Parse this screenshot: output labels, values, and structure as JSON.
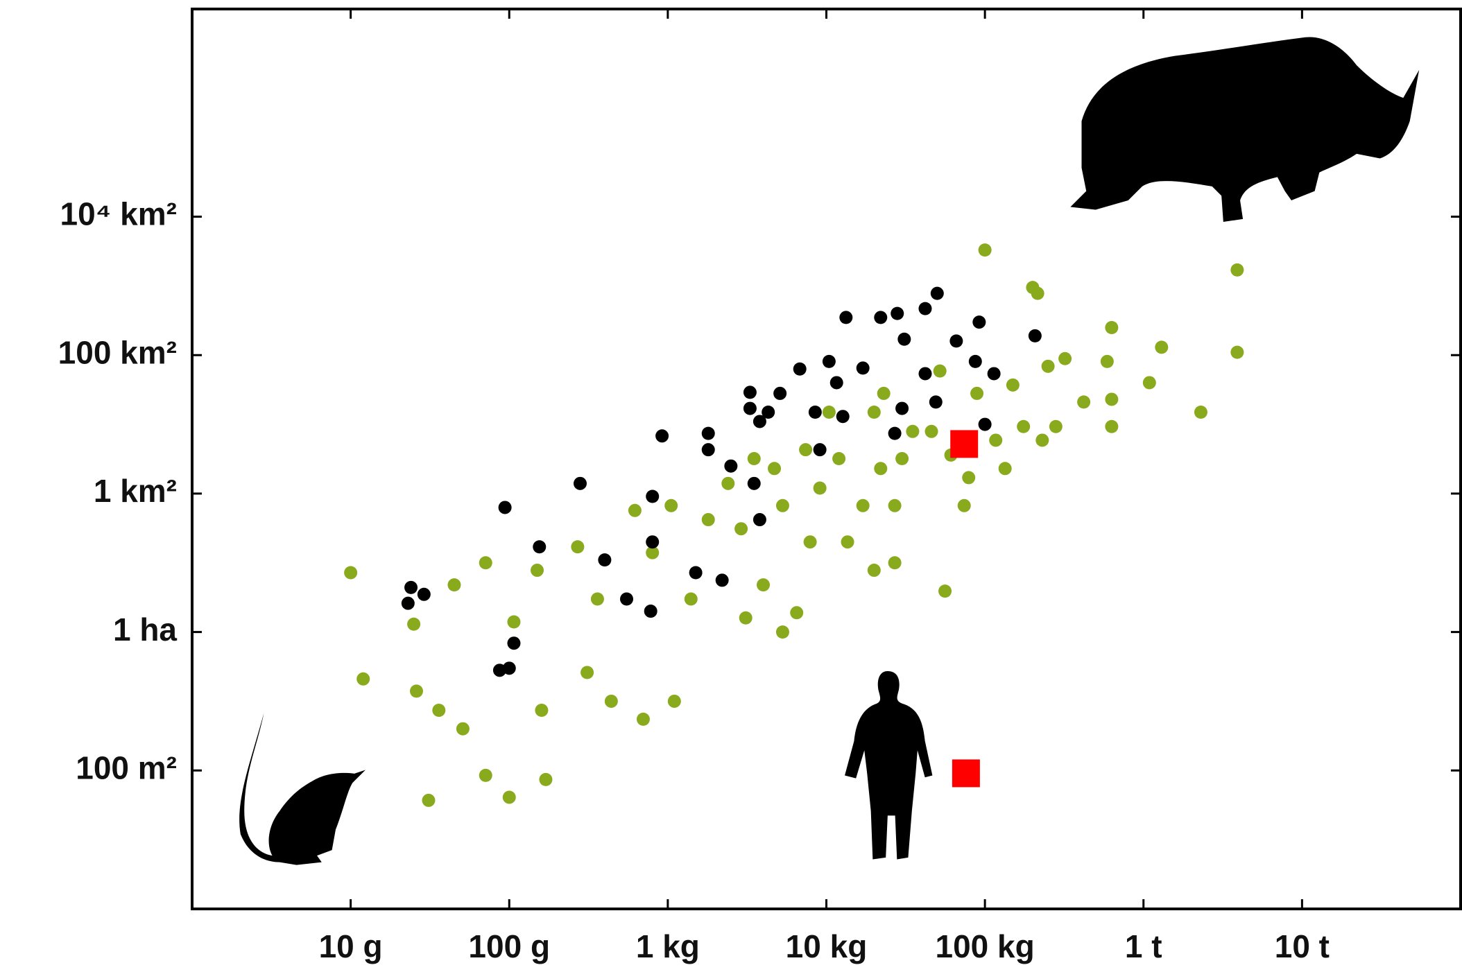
{
  "chart_data": {
    "type": "scatter",
    "xscale": "log",
    "yscale": "log",
    "xlim": [
      0.001,
      100000
    ],
    "ylim": [
      1,
      10000000000000
    ],
    "xticks": [
      {
        "value": 0.01,
        "label": "10 g"
      },
      {
        "value": 0.1,
        "label": "100 g"
      },
      {
        "value": 1,
        "label": "1 kg"
      },
      {
        "value": 10,
        "label": "10 kg"
      },
      {
        "value": 100,
        "label": "100 kg"
      },
      {
        "value": 1000,
        "label": "1 t"
      },
      {
        "value": 10000,
        "label": "10 t"
      }
    ],
    "yticks": [
      {
        "value": 100,
        "label": "100 m²"
      },
      {
        "value": 10000,
        "label": "1 ha"
      },
      {
        "value": 1000000,
        "label": "1 km²"
      },
      {
        "value": 100000000,
        "label": "100 km²"
      },
      {
        "value": 10000000000,
        "label": "10⁴ km²"
      }
    ],
    "series": [
      {
        "color": "#8aaa1e",
        "marker": "circle",
        "x": [
          0.01,
          0.012,
          0.031,
          0.1,
          0.071,
          0.045,
          0.025,
          0.026,
          0.036,
          0.051,
          0.071,
          0.107,
          0.15,
          0.16,
          0.17,
          0.27,
          0.36,
          0.31,
          0.44,
          0.62,
          0.7,
          0.8,
          1.1,
          1.05,
          1.4,
          1.8,
          2.4,
          2.9,
          3.1,
          3.5,
          4.0,
          4.7,
          5.3,
          6.5,
          5.3,
          7.4,
          7.9,
          9.1,
          10.4,
          12,
          13.6,
          17,
          20,
          22,
          20,
          23,
          27,
          27,
          30,
          35,
          46,
          52,
          56,
          74,
          89,
          100,
          117,
          134,
          150,
          175,
          200,
          215,
          230,
          250,
          280,
          320,
          420,
          590,
          630,
          630,
          630,
          1090,
          1300,
          2300,
          3900,
          3900,
          61,
          79
        ],
        "values": [
          72000,
          2100,
          37,
          41,
          100000,
          48000,
          13000,
          1400,
          740,
          400,
          85,
          14000,
          78000,
          740,
          74,
          170000,
          30000,
          2600,
          1000,
          570000,
          550,
          140000,
          1000,
          670000,
          30000,
          420000,
          1400000,
          310000,
          16000,
          3200000,
          48000,
          2300000,
          670000,
          19000,
          10000,
          4300000,
          200000,
          1200000,
          15000000,
          3200000,
          200000,
          670000,
          15000000,
          2300000,
          78000,
          28000000,
          670000,
          100000,
          3200000,
          7900000,
          7900000,
          59000000,
          39000,
          670000,
          28000000,
          3300000000,
          5900000,
          2300000,
          37000000,
          9300000,
          950000000,
          780000000,
          5900000,
          69000000,
          9300000,
          89000000,
          21000000,
          81000000,
          250000000,
          9300000,
          23000000,
          40000000,
          130000000,
          15000000,
          1700000000,
          110000000,
          3600000,
          1700000
        ]
      },
      {
        "color": "#000000",
        "marker": "circle",
        "x": [
          0.024,
          0.029,
          0.023,
          0.094,
          0.107,
          0.087,
          0.1,
          0.155,
          0.28,
          0.4,
          0.55,
          0.78,
          0.8,
          0.8,
          0.92,
          1.5,
          2.2,
          1.8,
          1.8,
          2.5,
          3.3,
          3.3,
          3.8,
          3.5,
          4.3,
          5.1,
          3.8,
          6.8,
          8.5,
          9.1,
          10.4,
          11.6,
          13.3,
          12.7,
          17,
          22,
          28,
          27,
          31,
          30,
          42,
          42,
          49,
          50,
          66,
          87,
          92,
          114,
          100,
          207
        ],
        "values": [
          44000,
          35000,
          26000,
          630000,
          6900,
          2800,
          3000,
          170000,
          1400000,
          110000,
          30000,
          20000,
          910000,
          200000,
          6800000,
          72000,
          56000,
          7400000,
          4300000,
          2500000,
          29000000,
          17000000,
          11000000,
          1400000,
          15000000,
          28000000,
          420000,
          63000000,
          15000000,
          4300000,
          81000000,
          40000000,
          350000000,
          13000000,
          65000000,
          350000000,
          400000000,
          7400000,
          170000000,
          17000000,
          470000000,
          54000000,
          21000000,
          780000000,
          160000000,
          81000000,
          300000000,
          54000000,
          10000000,
          190000000
        ]
      },
      {
        "color": "#ff0000",
        "marker": "square",
        "size": "large",
        "x": [
          74,
          76
        ],
        "values": [
          5200000,
          91
        ]
      }
    ]
  }
}
